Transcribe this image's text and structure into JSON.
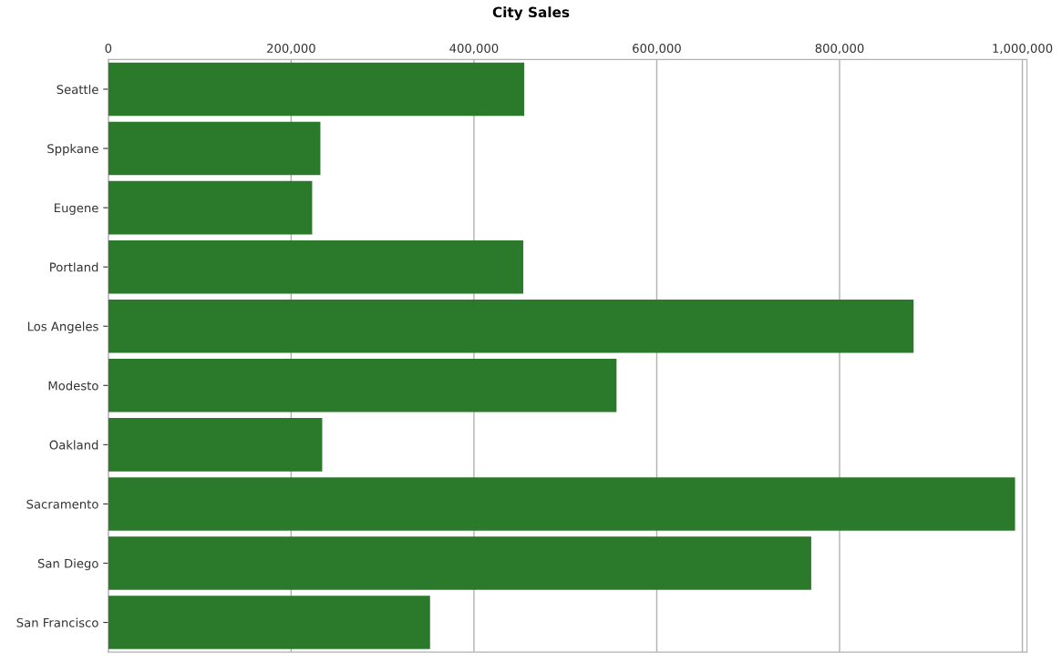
{
  "chart_data": {
    "type": "bar",
    "orientation": "horizontal",
    "title": "City Sales",
    "categories": [
      "Seattle",
      "Sppkane",
      "Eugene",
      "Portland",
      "Los Angeles",
      "Modesto",
      "Oakland",
      "Sacramento",
      "San Diego",
      "San Francisco"
    ],
    "values": [
      455000,
      232000,
      223000,
      454000,
      881000,
      556000,
      234000,
      992000,
      769000,
      352000
    ],
    "color": "#2b7a2b",
    "xlim": [
      0,
      1005000
    ],
    "xticks": [
      {
        "value": 0,
        "label": "0"
      },
      {
        "value": 200000,
        "label": "200,000"
      },
      {
        "value": 400000,
        "label": "400,000"
      },
      {
        "value": 600000,
        "label": "600,000"
      },
      {
        "value": 800000,
        "label": "800,000"
      },
      {
        "value": 1000000,
        "label": "1,000,000"
      }
    ],
    "grid": "x"
  }
}
